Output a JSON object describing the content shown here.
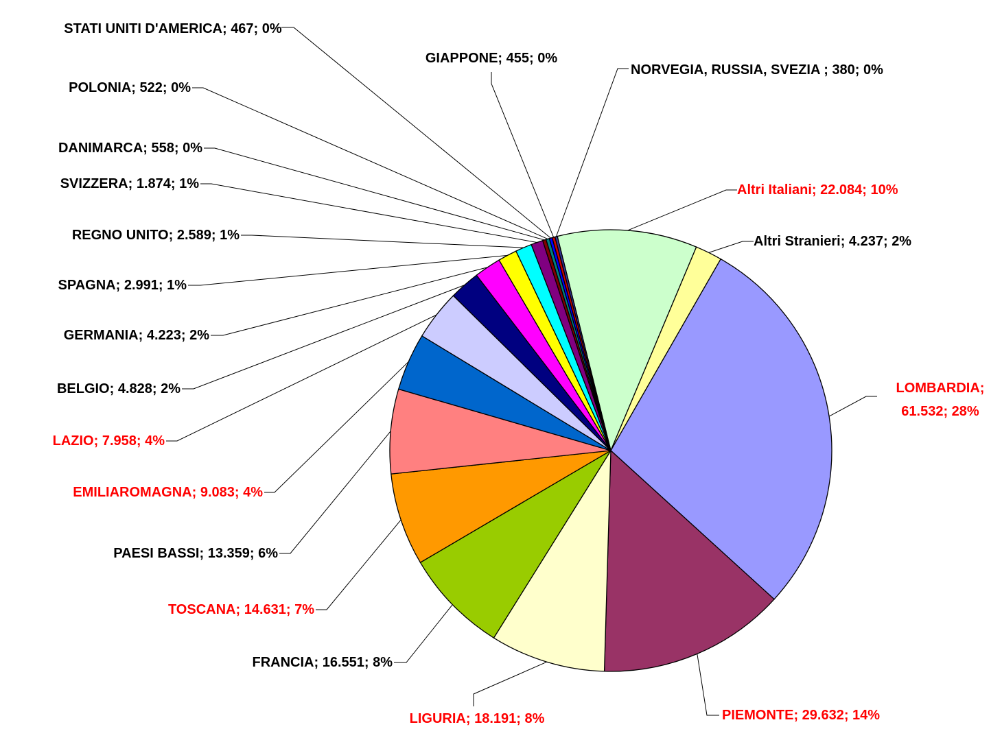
{
  "chart_data": {
    "type": "pie",
    "categories": [
      "Altri Italiani",
      "Altri Stranieri",
      "LOMBARDIA",
      "PIEMONTE",
      "LIGURIA",
      "FRANCIA",
      "TOSCANA",
      "PAESI BASSI",
      "EMILIAROMAGNA",
      "LAZIO",
      "BELGIO",
      "GERMANIA",
      "SPAGNA",
      "REGNO UNITO",
      "SVIZZERA",
      "DANIMARCA",
      "POLONIA",
      "STATI UNITI D'AMERICA",
      "GIAPPONE",
      "NORVEGIA, RUSSIA, SVEZIA "
    ],
    "values": [
      22084,
      4237,
      61532,
      29632,
      18191,
      16551,
      14631,
      13359,
      9083,
      7958,
      4828,
      4223,
      2991,
      2589,
      1874,
      558,
      522,
      467,
      455,
      380
    ],
    "value_labels": [
      "22.084; 10%",
      "4.237; 2%",
      "61.532; 28%",
      "29.632; 14%",
      "18.191; 8%",
      "16.551; 8%",
      "14.631; 7%",
      "13.359; 6%",
      "9.083; 4%",
      "7.958; 4%",
      "4.828; 2%",
      "4.223; 2%",
      "2.991; 1%",
      "2.589; 1%",
      "1.874; 1%",
      "558; 0%",
      "522; 0%",
      "467; 0%",
      "455; 0%",
      "380; 0%"
    ],
    "label_separator": "; ",
    "colors": [
      "#ccffcc",
      "#ffff99",
      "#9999ff",
      "#993366",
      "#ffffcc",
      "#99cc00",
      "#ff9900",
      "#ff8080",
      "#0066cc",
      "#ccccff",
      "#000080",
      "#ff00ff",
      "#ffff00",
      "#00ffff",
      "#800080",
      "#800000",
      "#008080",
      "#0000ff",
      "#cc0000",
      "#333399"
    ],
    "label_colors": [
      "#ff0000",
      "#000000",
      "#ff0000",
      "#ff0000",
      "#ff0000",
      "#000000",
      "#ff0000",
      "#000000",
      "#ff0000",
      "#ff0000",
      "#000000",
      "#000000",
      "#000000",
      "#000000",
      "#000000",
      "#000000",
      "#000000",
      "#000000",
      "#000000",
      "#000000"
    ]
  }
}
